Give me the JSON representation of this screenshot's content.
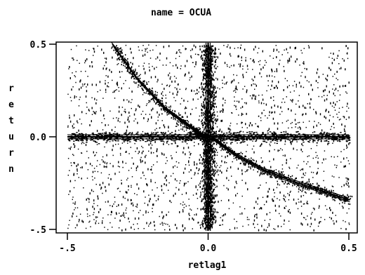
{
  "chart_data": {
    "type": "scatter",
    "title": "name = OCUA",
    "xlabel": "retlag1",
    "ylabel": "return",
    "xlim": [
      -0.5,
      0.5
    ],
    "ylim": [
      -0.5,
      0.5
    ],
    "x_ticks": [
      -0.5,
      0.0,
      0.5
    ],
    "x_tick_labels": [
      "-.5",
      "0.0",
      "0.5"
    ],
    "y_ticks": [
      0.5,
      0.0,
      -0.5
    ],
    "y_tick_labels": [
      "0.5",
      "0.0",
      "-.5"
    ],
    "grid": false,
    "legend": "none",
    "point_color": "#000000",
    "structure": {
      "upper_curve": [
        [
          -0.34,
          0.5
        ],
        [
          -0.25,
          0.31
        ],
        [
          -0.15,
          0.15
        ],
        [
          -0.05,
          0.04
        ],
        [
          -0.01,
          0.0
        ]
      ],
      "lower_curve": [
        [
          0.01,
          0.0
        ],
        [
          0.1,
          -0.1
        ],
        [
          0.2,
          -0.18
        ],
        [
          0.3,
          -0.24
        ],
        [
          0.4,
          -0.29
        ],
        [
          0.5,
          -0.34
        ]
      ],
      "horizontal_band_y": 0.0,
      "vertical_band_x": 0.0
    }
  }
}
